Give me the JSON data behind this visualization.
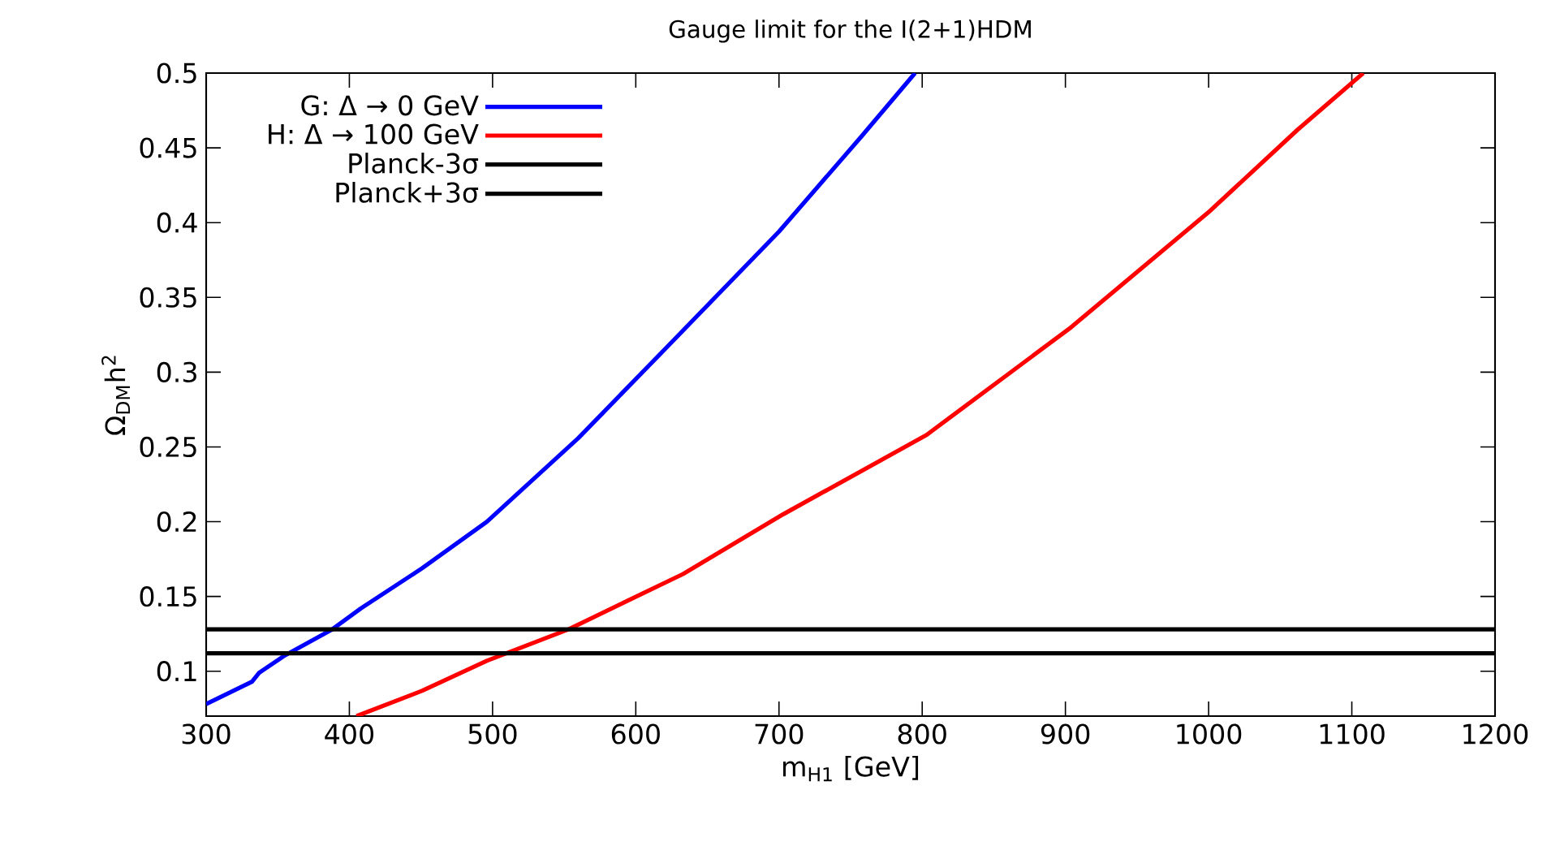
{
  "chart_data": {
    "type": "line",
    "title": "Gauge limit for the I(2+1)HDM",
    "xlabel": "m$_{H1}$ [GeV]",
    "ylabel": "Ω$_{DM}$h$^{2}$",
    "xlim": [
      300,
      1200
    ],
    "ylim": [
      0.07,
      0.5
    ],
    "xticks": [
      300,
      400,
      500,
      600,
      700,
      800,
      900,
      1000,
      1100,
      1200
    ],
    "yticks": [
      0.1,
      0.15,
      0.2,
      0.25,
      0.3,
      0.35,
      0.4,
      0.45,
      0.5
    ],
    "legend": "top left",
    "marker": "none",
    "line_style": "solid",
    "series": [
      {
        "name": "G: Δ → 0 GeV",
        "color": "#0000ff",
        "x": [
          300,
          332,
          337,
          354,
          388,
          408,
          451,
          496,
          560,
          623,
          700,
          757,
          795
        ],
        "values": [
          0.078,
          0.093,
          0.099,
          0.11,
          0.128,
          0.142,
          0.169,
          0.2,
          0.256,
          0.318,
          0.394,
          0.457,
          0.5
        ]
      },
      {
        "name": "H: Δ → 100 GeV",
        "color": "#ff0000",
        "x": [
          405,
          451,
          496,
          553,
          594,
          633,
          703,
          803,
          904,
          1000,
          1062,
          1108
        ],
        "values": [
          0.07,
          0.087,
          0.107,
          0.128,
          0.147,
          0.165,
          0.205,
          0.258,
          0.33,
          0.407,
          0.462,
          0.5
        ]
      },
      {
        "name": "Planck-3σ",
        "color": "#000000",
        "x": [
          300,
          1200
        ],
        "values": [
          0.112,
          0.112
        ]
      },
      {
        "name": "Planck+3σ",
        "color": "#000000",
        "x": [
          300,
          1200
        ],
        "values": [
          0.128,
          0.128
        ]
      }
    ]
  }
}
